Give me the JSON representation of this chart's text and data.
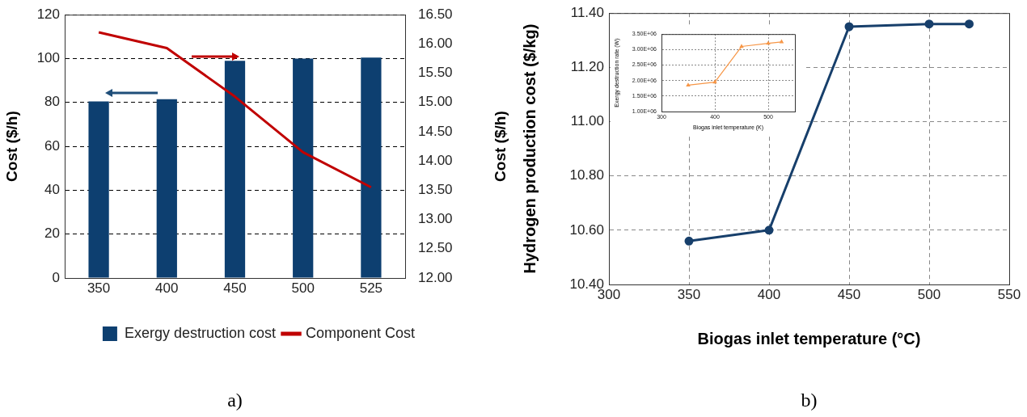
{
  "chart_data": [
    {
      "type": "bar",
      "categories": [
        "350",
        "400",
        "450",
        "500",
        "525"
      ],
      "ylabel": "Cost ($/h)",
      "y2label": "Cost ($/h)",
      "series": [
        {
          "name": "Exergy destruction cost",
          "color": "#0d3f70",
          "values": [
            80.5,
            81.5,
            99,
            100,
            100.5
          ]
        },
        {
          "name": "Component Cost",
          "type": "line",
          "axis": "y2",
          "color": "#c00000",
          "values": [
            16.2,
            15.93,
            15.1,
            14.15,
            13.55
          ]
        }
      ],
      "ylim": [
        0,
        120
      ],
      "yticks": [
        0,
        20,
        40,
        60,
        80,
        100,
        120
      ],
      "y2lim": [
        12,
        16.5
      ],
      "y2ticks": [
        {
          "value": 12,
          "label": "12.00"
        },
        {
          "value": 12.5,
          "label": "12.50"
        },
        {
          "value": 13,
          "label": "13.00"
        },
        {
          "value": 13.5,
          "label": "13.50"
        },
        {
          "value": 14,
          "label": "14.00"
        },
        {
          "value": 14.5,
          "label": "14.50"
        },
        {
          "value": 15,
          "label": "15.00"
        },
        {
          "value": 15.5,
          "label": "15.50"
        },
        {
          "value": 16,
          "label": "16.00"
        },
        {
          "value": 16.5,
          "label": "16.50"
        }
      ],
      "grid": "y",
      "legend": "bottom",
      "annotations": [
        "a)"
      ]
    },
    {
      "type": "line",
      "x": [
        350,
        400,
        450,
        500,
        525
      ],
      "values": [
        10.56,
        10.6,
        11.35,
        11.36,
        11.36
      ],
      "color": "#173f6b",
      "xlabel": "Biogas inlet temperature (°C)",
      "ylabel": "Hydrogen production cost ($/kg)",
      "xlim": [
        300,
        550
      ],
      "xticks": [
        300,
        350,
        400,
        450,
        500,
        550
      ],
      "ylim": [
        10.4,
        11.4
      ],
      "yticks": [
        {
          "value": 10.4,
          "label": "10.40"
        },
        {
          "value": 10.6,
          "label": "10.60"
        },
        {
          "value": 10.8,
          "label": "10.80"
        },
        {
          "value": 11,
          "label": "11.00"
        },
        {
          "value": 11.2,
          "label": "11.20"
        },
        {
          "value": 11.4,
          "label": "11.40"
        }
      ],
      "grid": true,
      "marker": "circle",
      "annotations": [
        "b)"
      ]
    },
    {
      "type": "line",
      "x": [
        350,
        400,
        450,
        500,
        525
      ],
      "values": [
        1850000,
        1950000,
        3100000,
        3200000,
        3250000
      ],
      "color": "#f79646",
      "xlabel": "Biogas inlet temperature (K)",
      "ylabel": "Exergy destruction rate (W)",
      "xlim": [
        300,
        550
      ],
      "xticks": [
        300,
        400,
        500
      ],
      "ylim": [
        1000000,
        3500000
      ],
      "yticks": [
        {
          "value": 1000000,
          "label": "1.00E+06"
        },
        {
          "value": 1500000,
          "label": "1.50E+06"
        },
        {
          "value": 2000000,
          "label": "2.00E+06"
        },
        {
          "value": 2500000,
          "label": "2.50E+06"
        },
        {
          "value": 3000000,
          "label": "3.00E+06"
        },
        {
          "value": 3500000,
          "label": "3.50E+06"
        }
      ],
      "grid": true,
      "marker": "triangle"
    }
  ]
}
